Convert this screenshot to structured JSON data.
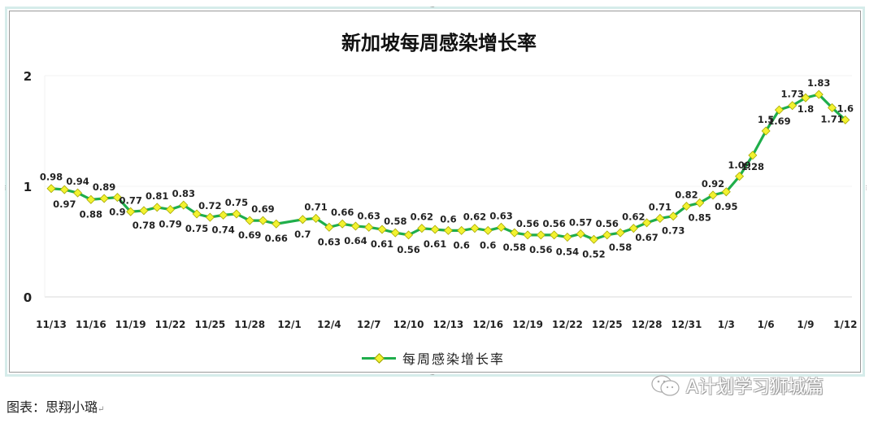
{
  "chart_data": {
    "type": "line",
    "title": "新加坡每周感染增长率",
    "xlabel": "",
    "ylabel": "",
    "ylim": [
      0,
      2
    ],
    "yticks": [
      "0",
      "1",
      "2"
    ],
    "grid": true,
    "legend_position": "bottom",
    "x_tick_labels": [
      "11/13",
      "11/16",
      "11/19",
      "11/22",
      "11/25",
      "11/28",
      "12/1",
      "12/4",
      "12/7",
      "12/10",
      "12/13",
      "12/16",
      "12/19",
      "12/22",
      "12/25",
      "12/28",
      "12/31",
      "1/3",
      "1/6",
      "1/9",
      "1/12"
    ],
    "x": [
      "11/13",
      "11/14",
      "11/15",
      "11/16",
      "11/17",
      "11/18",
      "11/19",
      "11/20",
      "11/21",
      "11/22",
      "11/23",
      "11/24",
      "11/25",
      "11/26",
      "11/27",
      "11/28",
      "11/29",
      "11/30",
      "12/1",
      "12/2",
      "12/3",
      "12/4",
      "12/5",
      "12/6",
      "12/7",
      "12/8",
      "12/9",
      "12/10",
      "12/11",
      "12/12",
      "12/13",
      "12/14",
      "12/15",
      "12/16",
      "12/17",
      "12/18",
      "12/19",
      "12/20",
      "12/21",
      "12/22",
      "12/23",
      "12/24",
      "12/25",
      "12/26",
      "12/27",
      "12/28",
      "12/29",
      "12/30",
      "12/31",
      "1/1",
      "1/2",
      "1/3",
      "1/4",
      "1/5",
      "1/6",
      "1/7",
      "1/8",
      "1/9",
      "1/10",
      "1/11",
      "1/12"
    ],
    "series": [
      {
        "name": "每周感染增长率",
        "color": "#1fae4b",
        "marker_color": "#f2f230",
        "values": [
          0.98,
          0.97,
          0.94,
          0.88,
          0.89,
          0.9,
          0.77,
          0.78,
          0.81,
          0.79,
          0.83,
          0.75,
          0.72,
          0.74,
          0.75,
          0.69,
          0.69,
          0.66,
          null,
          0.7,
          0.71,
          0.63,
          0.66,
          0.64,
          0.63,
          0.61,
          0.58,
          0.56,
          0.62,
          0.61,
          0.6,
          0.6,
          0.62,
          0.6,
          0.63,
          0.58,
          0.56,
          0.56,
          0.56,
          0.54,
          0.57,
          0.52,
          0.56,
          0.58,
          0.62,
          0.67,
          0.71,
          0.73,
          0.82,
          0.85,
          0.92,
          0.95,
          1.09,
          1.28,
          1.5,
          1.69,
          1.73,
          1.8,
          1.83,
          1.71,
          1.6
        ]
      }
    ]
  },
  "legend": {
    "label": "每周感染增长率"
  },
  "caption": "图表：思翔小璐",
  "watermark": "A计划学习狮城篇"
}
